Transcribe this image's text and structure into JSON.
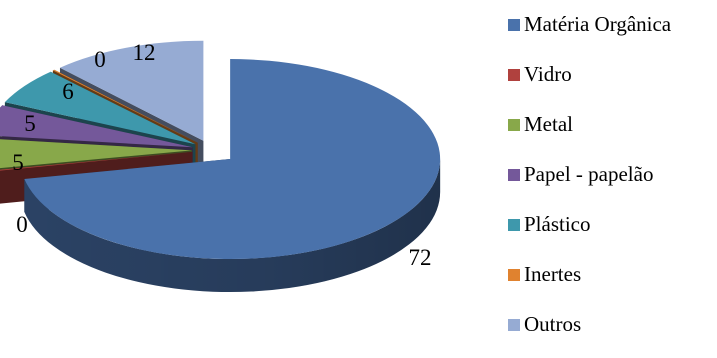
{
  "chart_data": {
    "type": "pie",
    "title": "",
    "categories": [
      "Matéria Orgânica",
      "Vidro",
      "Metal",
      "Papel - papelão",
      "Plástico",
      "Inertes",
      "Outros"
    ],
    "values": [
      72,
      0,
      5,
      5,
      6,
      0,
      12
    ],
    "colors": [
      "#4a72ab",
      "#b0413e",
      "#88a84a",
      "#74589a",
      "#3e98ac",
      "#e0822f",
      "#96abd3"
    ],
    "style": "3d-exploded",
    "data_labels": true,
    "legend_position": "right"
  }
}
